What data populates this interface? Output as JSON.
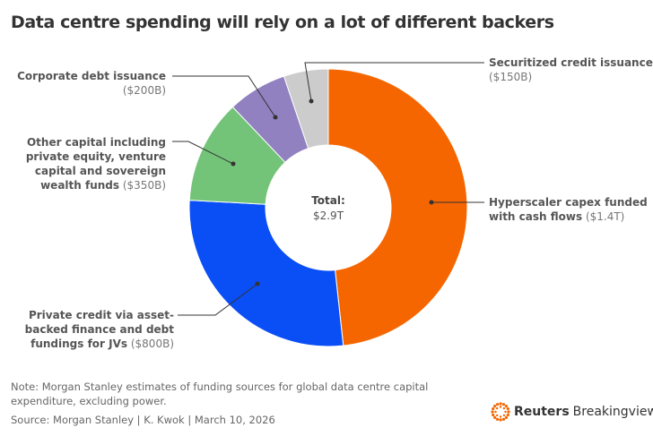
{
  "title": "Data centre spending will rely on a lot of different backers",
  "chart_data": {
    "type": "pie",
    "variant": "donut",
    "title": "Data centre spending will rely on a lot of different backers",
    "unit": "USD billions",
    "center_label": "Total:",
    "center_value": "$2.9T",
    "slices": [
      {
        "name": "Hyperscaler capex funded with cash flows",
        "label_lines": [
          "Hyperscaler capex funded",
          "with cash flows"
        ],
        "value": 1400,
        "value_label": "($1.4T)",
        "color": "#f56600"
      },
      {
        "name": "Private credit via asset-backed finance and debt fundings for JVs",
        "label_lines": [
          "Private credit via asset-",
          "backed finance and debt",
          "fundings for JVs"
        ],
        "value": 800,
        "value_label": "($800B)",
        "color": "#0a4ef5"
      },
      {
        "name": "Other capital including private equity, venture capital and sovereign wealth funds",
        "label_lines": [
          "Other capital including",
          "private equity, venture",
          "capital and sovereign",
          "wealth funds"
        ],
        "value": 350,
        "value_label": "($350B)",
        "color": "#73c378"
      },
      {
        "name": "Corporate debt issuance",
        "label_lines": [
          "Corporate debt issuance"
        ],
        "value": 200,
        "value_label": "($200B)",
        "color": "#9181c0"
      },
      {
        "name": "Securitized credit issuance",
        "label_lines": [
          "Securitized credit issuance"
        ],
        "value": 150,
        "value_label": "($150B)",
        "color": "#cccccc"
      }
    ]
  },
  "note": "Note: Morgan Stanley estimates of funding sources for global data centre capital expenditure, excluding power.",
  "source": "Source: Morgan Stanley | K. Kwok | March 10, 2026",
  "logo": {
    "brand": "Reuters",
    "product": "Breakingviews",
    "color": "#f56600"
  }
}
